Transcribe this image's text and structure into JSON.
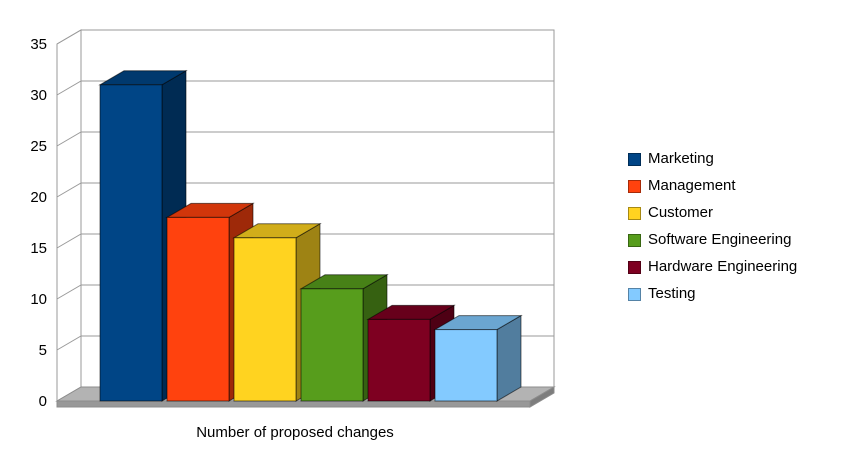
{
  "chart_data": {
    "type": "bar",
    "projection": "3d",
    "categories": [
      "Marketing",
      "Management",
      "Customer",
      "Software Engineering",
      "Hardware Engineering",
      "Testing"
    ],
    "values": [
      31,
      18,
      16,
      11,
      8,
      7
    ],
    "colors": [
      "#004586",
      "#FF420E",
      "#FFD320",
      "#579D1C",
      "#7E0021",
      "#83CAFF"
    ],
    "title": "",
    "xlabel": "Number of proposed changes",
    "ylabel": "",
    "ylim": [
      0,
      35
    ],
    "ytick_step": 5,
    "ytick_labels": [
      "0",
      "5",
      "10",
      "15",
      "20",
      "25",
      "30",
      "35"
    ],
    "grid": true,
    "legend_position": "right",
    "wall_color": "#ffffff",
    "floor_color": "#b3b3b3",
    "gridline_color": "#9a9a9a"
  }
}
